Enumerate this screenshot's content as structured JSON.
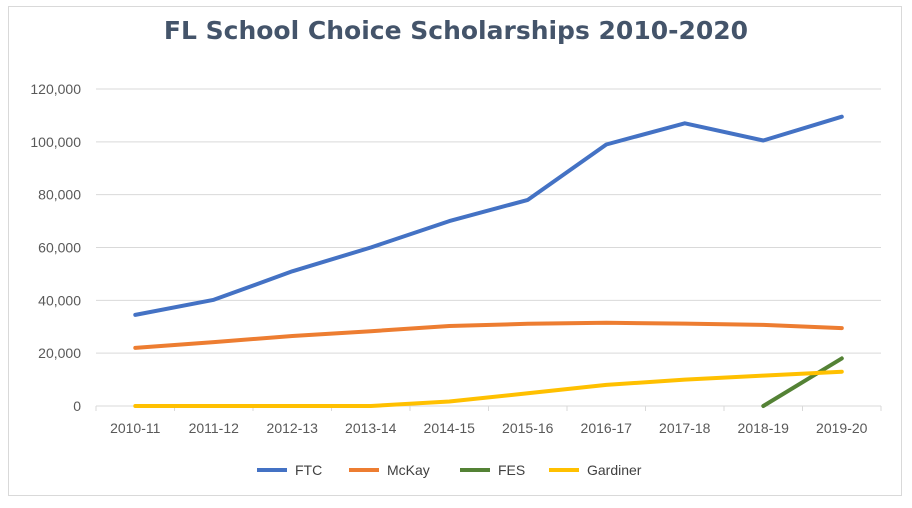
{
  "chart_data": {
    "type": "line",
    "title": "FL School Choice Scholarships 2010-2020",
    "xlabel": "",
    "ylabel": "",
    "ylim": [
      0,
      120000
    ],
    "yticks": [
      "0",
      "20,000",
      "40,000",
      "60,000",
      "80,000",
      "100,000",
      "120,000"
    ],
    "ytick_values": [
      0,
      20000,
      40000,
      60000,
      80000,
      100000,
      120000
    ],
    "categories": [
      "2010-11",
      "2011-12",
      "2012-13",
      "2013-14",
      "2014-15",
      "2015-16",
      "2016-17",
      "2017-18",
      "2018-19",
      "2019-20"
    ],
    "grid": true,
    "legend_position": "bottom",
    "series": [
      {
        "name": "FTC",
        "color": "#4472c4",
        "values": [
          34500,
          40200,
          51000,
          60000,
          70000,
          78000,
          99000,
          107000,
          100500,
          109500
        ]
      },
      {
        "name": "McKay",
        "color": "#ed7d31",
        "values": [
          22000,
          24200,
          26500,
          28300,
          30300,
          31100,
          31500,
          31200,
          30700,
          29500
        ]
      },
      {
        "name": "FES",
        "color": "#548235",
        "values": [
          null,
          null,
          null,
          null,
          null,
          null,
          null,
          null,
          0,
          18000
        ]
      },
      {
        "name": "Gardiner",
        "color": "#ffc000",
        "values": [
          0,
          0,
          0,
          0,
          1700,
          4800,
          8000,
          10000,
          11500,
          13000
        ]
      }
    ]
  }
}
